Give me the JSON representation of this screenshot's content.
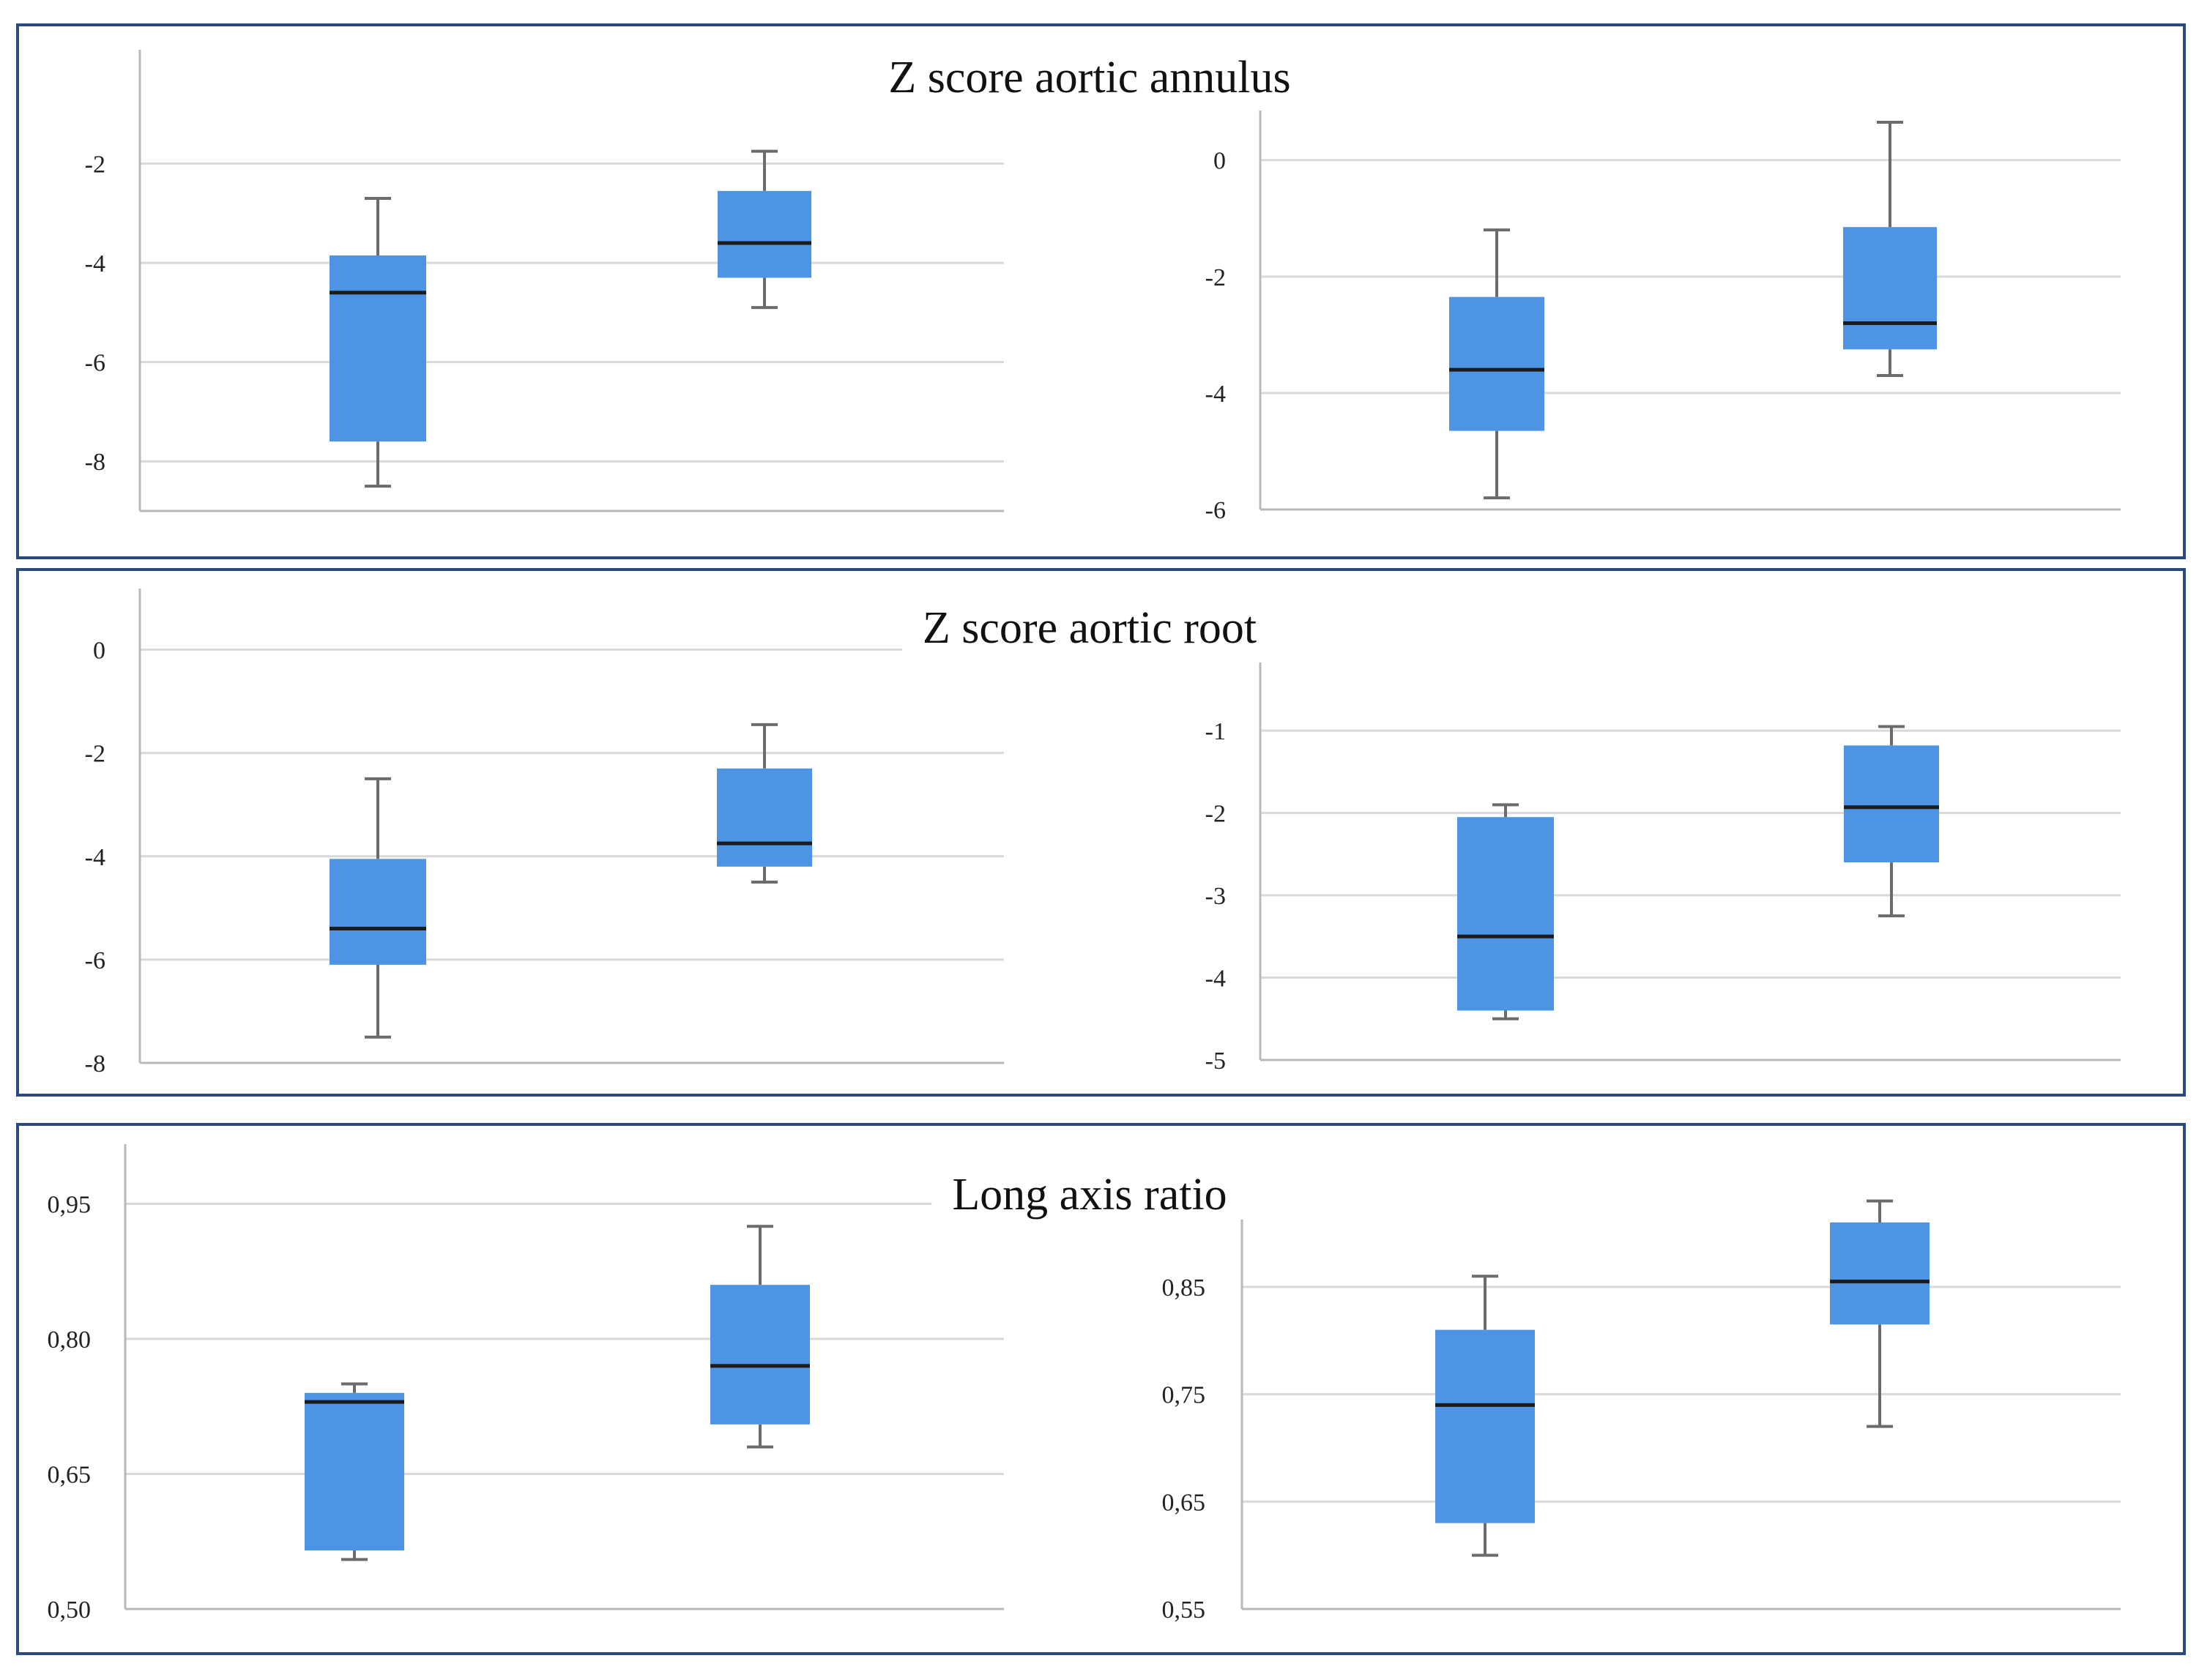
{
  "panels": [
    {
      "title": "Z score aortic annulus"
    },
    {
      "title": "Z score aortic root"
    },
    {
      "title": "Long axis ratio"
    }
  ],
  "chart_data": [
    {
      "type": "box",
      "panel": 0,
      "side": "left",
      "ylim": [
        -9,
        0
      ],
      "yticks": [
        -8,
        -6,
        -4,
        -2
      ],
      "ytick_labels": [
        "-8",
        "-6",
        "-4",
        "-2"
      ],
      "series": [
        {
          "min": -8.5,
          "q1": -7.6,
          "median": -4.6,
          "q3": -3.85,
          "max": -2.7
        },
        {
          "min": -4.9,
          "q1": -4.3,
          "median": -3.6,
          "q3": -2.55,
          "max": -1.75
        }
      ]
    },
    {
      "type": "box",
      "panel": 0,
      "side": "right",
      "ylim": [
        -6,
        0.6
      ],
      "yticks": [
        -6,
        -4,
        -2,
        0
      ],
      "ytick_labels": [
        "-6",
        "-4",
        "-2",
        "0"
      ],
      "series": [
        {
          "min": -5.8,
          "q1": -4.65,
          "median": -3.6,
          "q3": -2.35,
          "max": -1.2
        },
        {
          "min": -3.7,
          "q1": -3.25,
          "median": -2.8,
          "q3": -1.15,
          "max": 0.65
        }
      ]
    },
    {
      "type": "box",
      "panel": 1,
      "side": "left",
      "ylim": [
        -8,
        0.9
      ],
      "yticks": [
        -8,
        -6,
        -4,
        -2,
        0
      ],
      "ytick_labels": [
        "-8",
        "-6",
        "-4",
        "-2",
        "0"
      ],
      "series": [
        {
          "min": -7.5,
          "q1": -6.1,
          "median": -5.4,
          "q3": -4.05,
          "max": -2.5
        },
        {
          "min": -4.5,
          "q1": -4.2,
          "median": -3.75,
          "q3": -2.3,
          "max": -1.45
        }
      ]
    },
    {
      "type": "box",
      "panel": 1,
      "side": "right",
      "ylim": [
        -5,
        -0.35
      ],
      "yticks": [
        -5,
        -4,
        -3,
        -2,
        -1
      ],
      "ytick_labels": [
        "-5",
        "-4",
        "-3",
        "-2",
        "-1"
      ],
      "series": [
        {
          "min": -4.5,
          "q1": -4.4,
          "median": -3.5,
          "q3": -2.05,
          "max": -1.9
        },
        {
          "min": -3.25,
          "q1": -2.6,
          "median": -1.93,
          "q3": -1.18,
          "max": -0.95
        }
      ]
    },
    {
      "type": "box",
      "panel": 2,
      "side": "left",
      "ylim": [
        0.5,
        1.0
      ],
      "yticks": [
        0.5,
        0.65,
        0.8,
        0.95
      ],
      "ytick_labels": [
        "0,50",
        "0,65",
        "0,80",
        "0,95"
      ],
      "series": [
        {
          "min": 0.555,
          "q1": 0.565,
          "median": 0.73,
          "q3": 0.74,
          "max": 0.75
        },
        {
          "min": 0.68,
          "q1": 0.705,
          "median": 0.77,
          "q3": 0.86,
          "max": 0.925
        }
      ]
    },
    {
      "type": "box",
      "panel": 2,
      "side": "right",
      "ylim": [
        0.55,
        0.91
      ],
      "yticks": [
        0.55,
        0.65,
        0.75,
        0.85
      ],
      "ytick_labels": [
        "0,55",
        "0,65",
        "0,75",
        "0,85"
      ],
      "series": [
        {
          "min": 0.6,
          "q1": 0.63,
          "median": 0.74,
          "q3": 0.81,
          "max": 0.86
        },
        {
          "min": 0.72,
          "q1": 0.815,
          "median": 0.855,
          "q3": 0.91,
          "max": 0.93
        }
      ]
    }
  ]
}
